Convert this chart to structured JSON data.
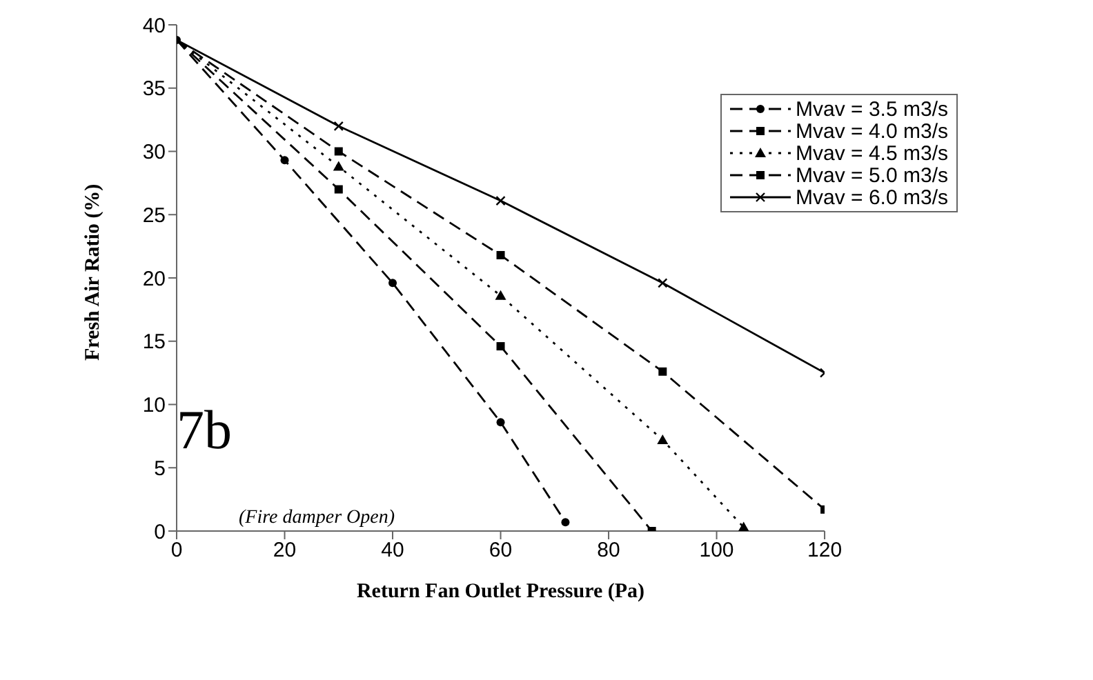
{
  "chart_data": {
    "type": "line",
    "xlabel": "Return Fan Outlet Pressure (Pa)",
    "ylabel": "Fresh Air Ratio (%)",
    "xlim": [
      0,
      120
    ],
    "xticks": [
      0,
      20,
      40,
      60,
      80,
      100,
      120
    ],
    "ylim": [
      0,
      40
    ],
    "yticks": [
      0,
      5,
      10,
      15,
      20,
      25,
      30,
      35,
      40
    ],
    "grid": false,
    "legend": "top right",
    "annotations": [
      "7b",
      "(Fire damper Open)"
    ],
    "series": [
      {
        "name": "Mvav = 3.5 m3/s",
        "color": "#000000",
        "marker": "circle",
        "line_style": "dashed",
        "x": [
          0,
          20,
          40,
          60,
          72
        ],
        "values": [
          38.8,
          29.3,
          19.6,
          8.6,
          0.7
        ]
      },
      {
        "name": "Mvav = 4.0 m3/s",
        "color": "#000000",
        "marker": "square",
        "line_style": "dashed",
        "x": [
          0,
          30,
          60,
          88
        ],
        "values": [
          38.8,
          27,
          14.6,
          0
        ]
      },
      {
        "name": "Mvav = 4.5 m3/s",
        "color": "#000000",
        "marker": "triangle",
        "line_style": "dotted",
        "x": [
          0,
          30,
          60,
          90,
          105
        ],
        "values": [
          38.8,
          28.8,
          18.6,
          7.2,
          0.3
        ]
      },
      {
        "name": "Mvav = 5.0 m3/s",
        "color": "#000000",
        "marker": "square",
        "line_style": "dashed",
        "x": [
          0,
          30,
          60,
          90,
          120
        ],
        "values": [
          38.8,
          30,
          21.8,
          12.6,
          1.7
        ]
      },
      {
        "name": "Mvav = 6.0 m3/s",
        "color": "#000000",
        "marker": "cross",
        "line_style": "solid",
        "x": [
          0,
          30,
          60,
          90,
          120
        ],
        "values": [
          38.8,
          32,
          26.1,
          19.6,
          12.5
        ]
      }
    ]
  }
}
